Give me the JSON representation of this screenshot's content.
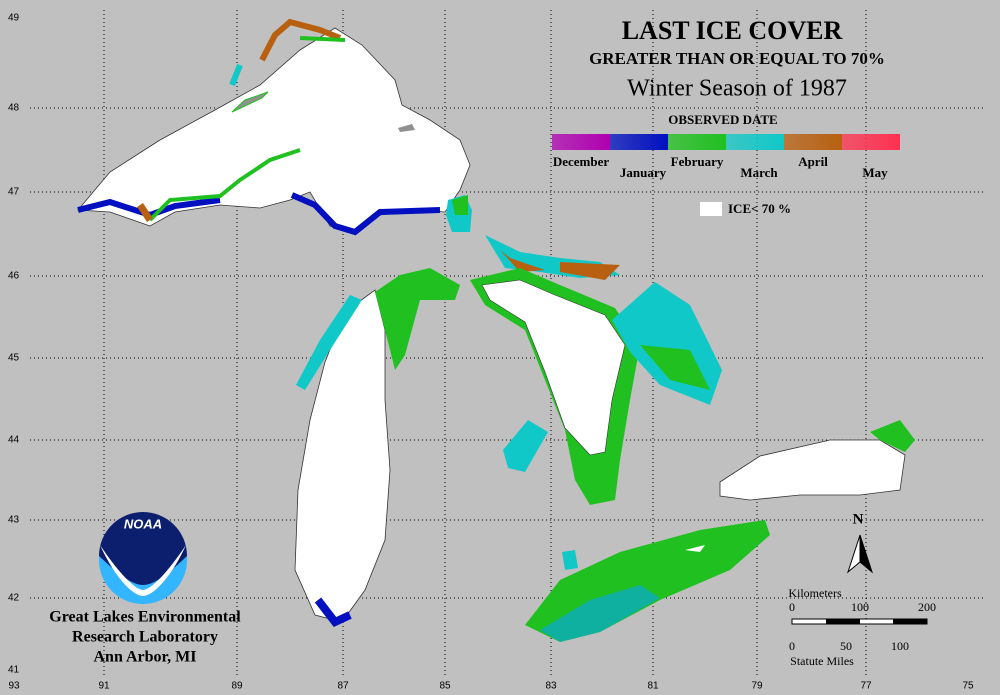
{
  "header": {
    "title": "LAST ICE COVER",
    "subtitle": "GREATER THAN OR EQUAL TO 70%",
    "season": "Winter Season of 1987"
  },
  "legend": {
    "title": "OBSERVED DATE",
    "items": [
      {
        "label": "December",
        "color": "#b000b0"
      },
      {
        "label": "January",
        "color": "#0010c0"
      },
      {
        "label": "February",
        "color": "#20c020"
      },
      {
        "label": "March",
        "color": "#10c8c8"
      },
      {
        "label": "April",
        "color": "#b86010"
      },
      {
        "label": "May",
        "color": "#ff3050"
      }
    ],
    "below": "ICE< 70 %"
  },
  "grid": {
    "latitudes": [
      49,
      48,
      47,
      46,
      45,
      44,
      43,
      42,
      41
    ],
    "longitudes": [
      93,
      91,
      89,
      87,
      85,
      83,
      81,
      79,
      77,
      75
    ]
  },
  "north": "N",
  "scale": {
    "km_title": "Kilometers",
    "km_ticks": [
      0,
      100,
      200
    ],
    "mi_ticks": [
      0,
      50,
      100
    ],
    "mi_title": "Statute Miles"
  },
  "agency": {
    "logo": "NOAA",
    "lines": [
      "Great Lakes Environmental",
      "Research Laboratory",
      "Ann Arbor, MI"
    ]
  }
}
